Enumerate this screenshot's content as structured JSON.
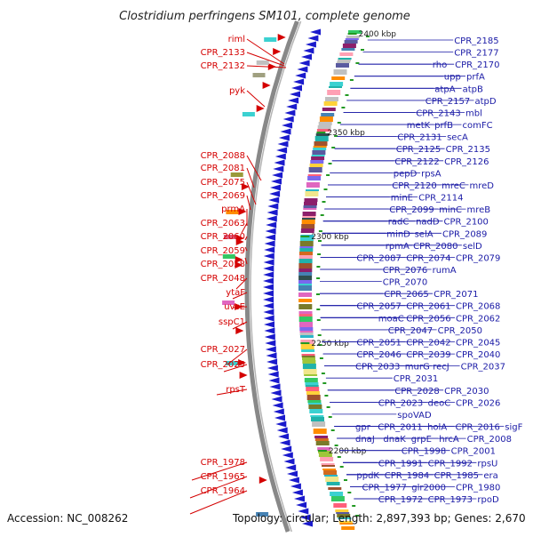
{
  "title": "Clostridium perfringens SM101, complete genome",
  "footer": {
    "accession": "Accession: NC_008262",
    "topology": "Topology: circular; Length: 2,897,393 bp; Genes: 2,670"
  },
  "colors": {
    "forward_feature": "#d40000",
    "reverse_feature": "#1a1aa6",
    "backbone": "#888888",
    "reverse_strand_arrow": "#1a1acc"
  },
  "kbp_marks": [
    "2400 kbp",
    "2350 kbp",
    "2300 kbp",
    "2250 kbp",
    "2200 kbp"
  ],
  "left_labels": [
    "riml",
    "CPR_2133",
    "CPR_2132",
    "pyk",
    "CPR_2088",
    "CPR_2081",
    "CPR_2075",
    "CPR_2069",
    "prmA",
    "CPR_2063",
    "CPR_2060",
    "CPR_2059",
    "CPR_2058",
    "CPR_2048",
    "ytaF",
    "uvsE",
    "sspC1",
    "CPR_2027",
    "CPR_2025",
    "rpsT",
    "CPR_1978",
    "CPR_1965",
    "CPR_1964"
  ],
  "right_labels": [
    "CPR_2185",
    "CPR_2177",
    "rho",
    "CPR_2170",
    "upp",
    "prfA",
    "atpA",
    "atpB",
    "CPR_2157",
    "atpD",
    "CPR_2143",
    "mbl",
    "metK",
    "prfB",
    "comFC",
    "CPR_2131",
    "secA",
    "CPR_2125",
    "CPR_2135",
    "CPR_2122",
    "CPR_2126",
    "pepD",
    "rpsA",
    "CPR_2120",
    "mreC",
    "mreD",
    "minE",
    "CPR_2114",
    "CPR_2099",
    "minC",
    "mreB",
    "radC",
    "nadD",
    "CPR_2100",
    "minD",
    "selA",
    "CPR_2089",
    "rpmA",
    "CPR_2080",
    "selD",
    "CPR_2087",
    "CPR_2074",
    "CPR_2079",
    "CPR_2076",
    "rumA",
    "CPR_2070",
    "CPR_2065",
    "CPR_2071",
    "CPR_2057",
    "CPR_2061",
    "CPR_2068",
    "moaC",
    "CPR_2056",
    "CPR_2062",
    "CPR_2047",
    "CPR_2050",
    "CPR_2051",
    "CPR_2042",
    "CPR_2045",
    "CPR_2046",
    "CPR_2039",
    "CPR_2040",
    "CPR_2033",
    "murG",
    "recJ",
    "CPR_2037",
    "CPR_2031",
    "CPR_2028",
    "CPR_2030",
    "CPR_2023",
    "deoC",
    "CPR_2026",
    "spoVAD",
    "gpr",
    "CPR_2011",
    "holA",
    "CPR_2016",
    "sigF",
    "dnaJ",
    "dnaK",
    "grpE",
    "hrcA",
    "CPR_2008",
    "CPR_1998",
    "CPR_2001",
    "CPR_1991",
    "CPR_1992",
    "rpsU",
    "ppdK",
    "CPR_1984",
    "CPR_1985",
    "era",
    "CPR_1977",
    "glr2000",
    "CPR_1980",
    "CPR_1972",
    "CPR_1973",
    "rpoD"
  ]
}
